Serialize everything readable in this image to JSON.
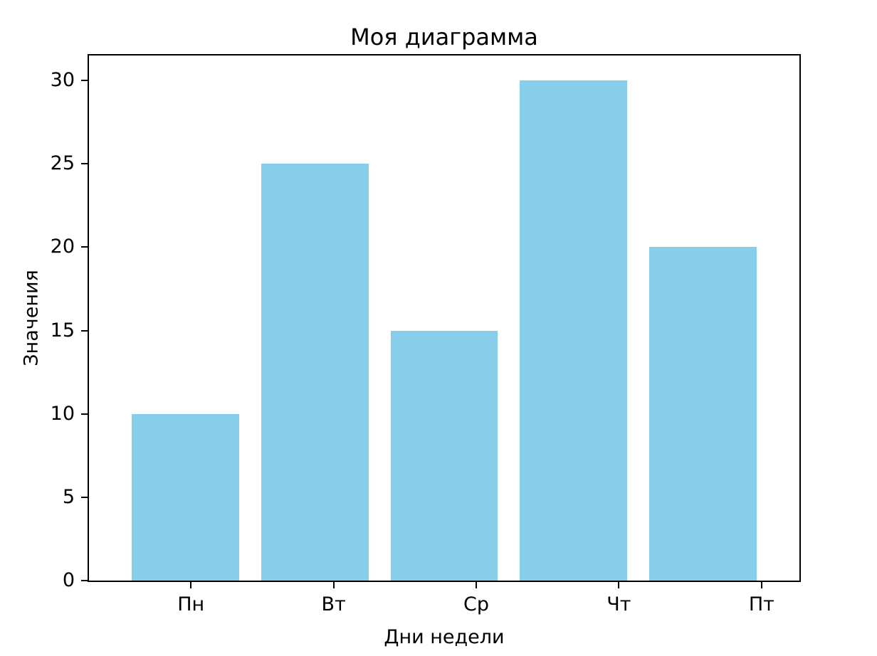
{
  "chart_data": {
    "type": "bar",
    "title": "Моя диаграмма",
    "xlabel": "Дни недели",
    "ylabel": "Значения",
    "categories": [
      "Пн",
      "Вт",
      "Ср",
      "Чт",
      "Пт"
    ],
    "values": [
      10,
      25,
      15,
      30,
      20
    ],
    "yticks": [
      0,
      5,
      10,
      15,
      20,
      25,
      30
    ],
    "ylim": [
      0,
      31.5
    ],
    "bar_color": "#87CEEB",
    "text_color": "#000000",
    "background_color": "#ffffff",
    "grid": false,
    "legend_position": "none"
  }
}
